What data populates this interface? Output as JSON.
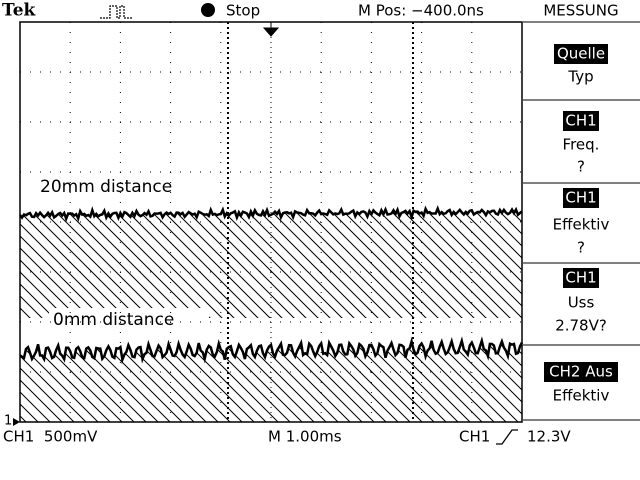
{
  "header": {
    "brand": "Tek",
    "state": "Stop",
    "position": "M Pos: −400.0ns",
    "menu_title": "MESSUNG"
  },
  "menu": [
    {
      "lines": [
        "Quelle",
        "Typ"
      ]
    },
    {
      "lines": [
        "CH1",
        "Freq.",
        "?"
      ]
    },
    {
      "lines": [
        "CH1",
        "Effektiv",
        "?"
      ]
    },
    {
      "lines": [
        "CH1",
        "Uss",
        "2.78V?"
      ]
    },
    {
      "lines": [
        "CH2 Aus",
        "Effektiv"
      ]
    }
  ],
  "annotations": [
    "20mm distance",
    "0mm distance"
  ],
  "channel_marker": "1",
  "footer": {
    "ch1_scale": "CH1  500mV",
    "timebase": "M 1.00ms",
    "trigger_source": "CH1",
    "trigger_level": "12.3V"
  }
}
